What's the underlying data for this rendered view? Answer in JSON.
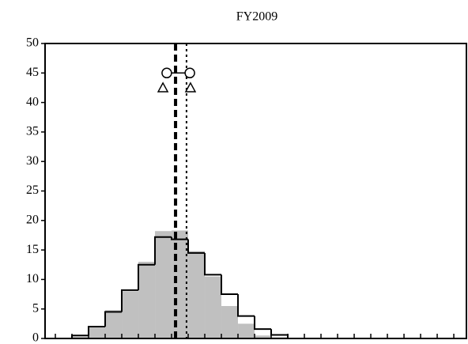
{
  "chart_data": {
    "type": "histogram",
    "title": "FY2009",
    "bins": [
      1,
      2,
      3,
      4,
      5,
      6,
      7,
      8,
      9,
      10,
      11,
      12,
      13,
      14
    ],
    "series": [
      {
        "style": "fill",
        "color": "#c0c0c0",
        "counts": [
          0.3,
          1.8,
          4.8,
          8,
          13,
          18.2,
          18.3,
          14.8,
          10.5,
          5.5,
          2.5,
          0.5,
          0.2
        ]
      },
      {
        "style": "step",
        "color": "#000000",
        "counts": [
          0.5,
          2,
          4.5,
          8.2,
          12.5,
          17.2,
          16.8,
          14.5,
          10.8,
          7.5,
          3.8,
          1.6,
          0.6
        ]
      }
    ],
    "vlines": [
      {
        "value": 7.24,
        "style": "dashed"
      },
      {
        "value": 7.9,
        "style": "dotted"
      }
    ],
    "markers": [
      {
        "shape": "circle",
        "x": [
          6.71,
          8.1
        ],
        "y": [
          45,
          45
        ]
      },
      {
        "shape": "triangle",
        "x": [
          6.48,
          8.14
        ],
        "y": [
          42.5,
          42.5
        ]
      }
    ],
    "xlim": [
      -0.62,
      24.76
    ],
    "xticks": [
      0,
      1,
      2,
      3,
      4,
      5,
      6,
      7,
      8,
      9,
      10,
      11,
      12,
      13,
      14,
      15,
      16,
      17,
      18,
      19,
      20,
      21,
      22,
      23,
      24
    ],
    "ylim": [
      0,
      50
    ],
    "yticks": [
      0,
      5,
      10,
      15,
      20,
      25,
      30,
      35,
      40,
      45,
      50
    ]
  }
}
